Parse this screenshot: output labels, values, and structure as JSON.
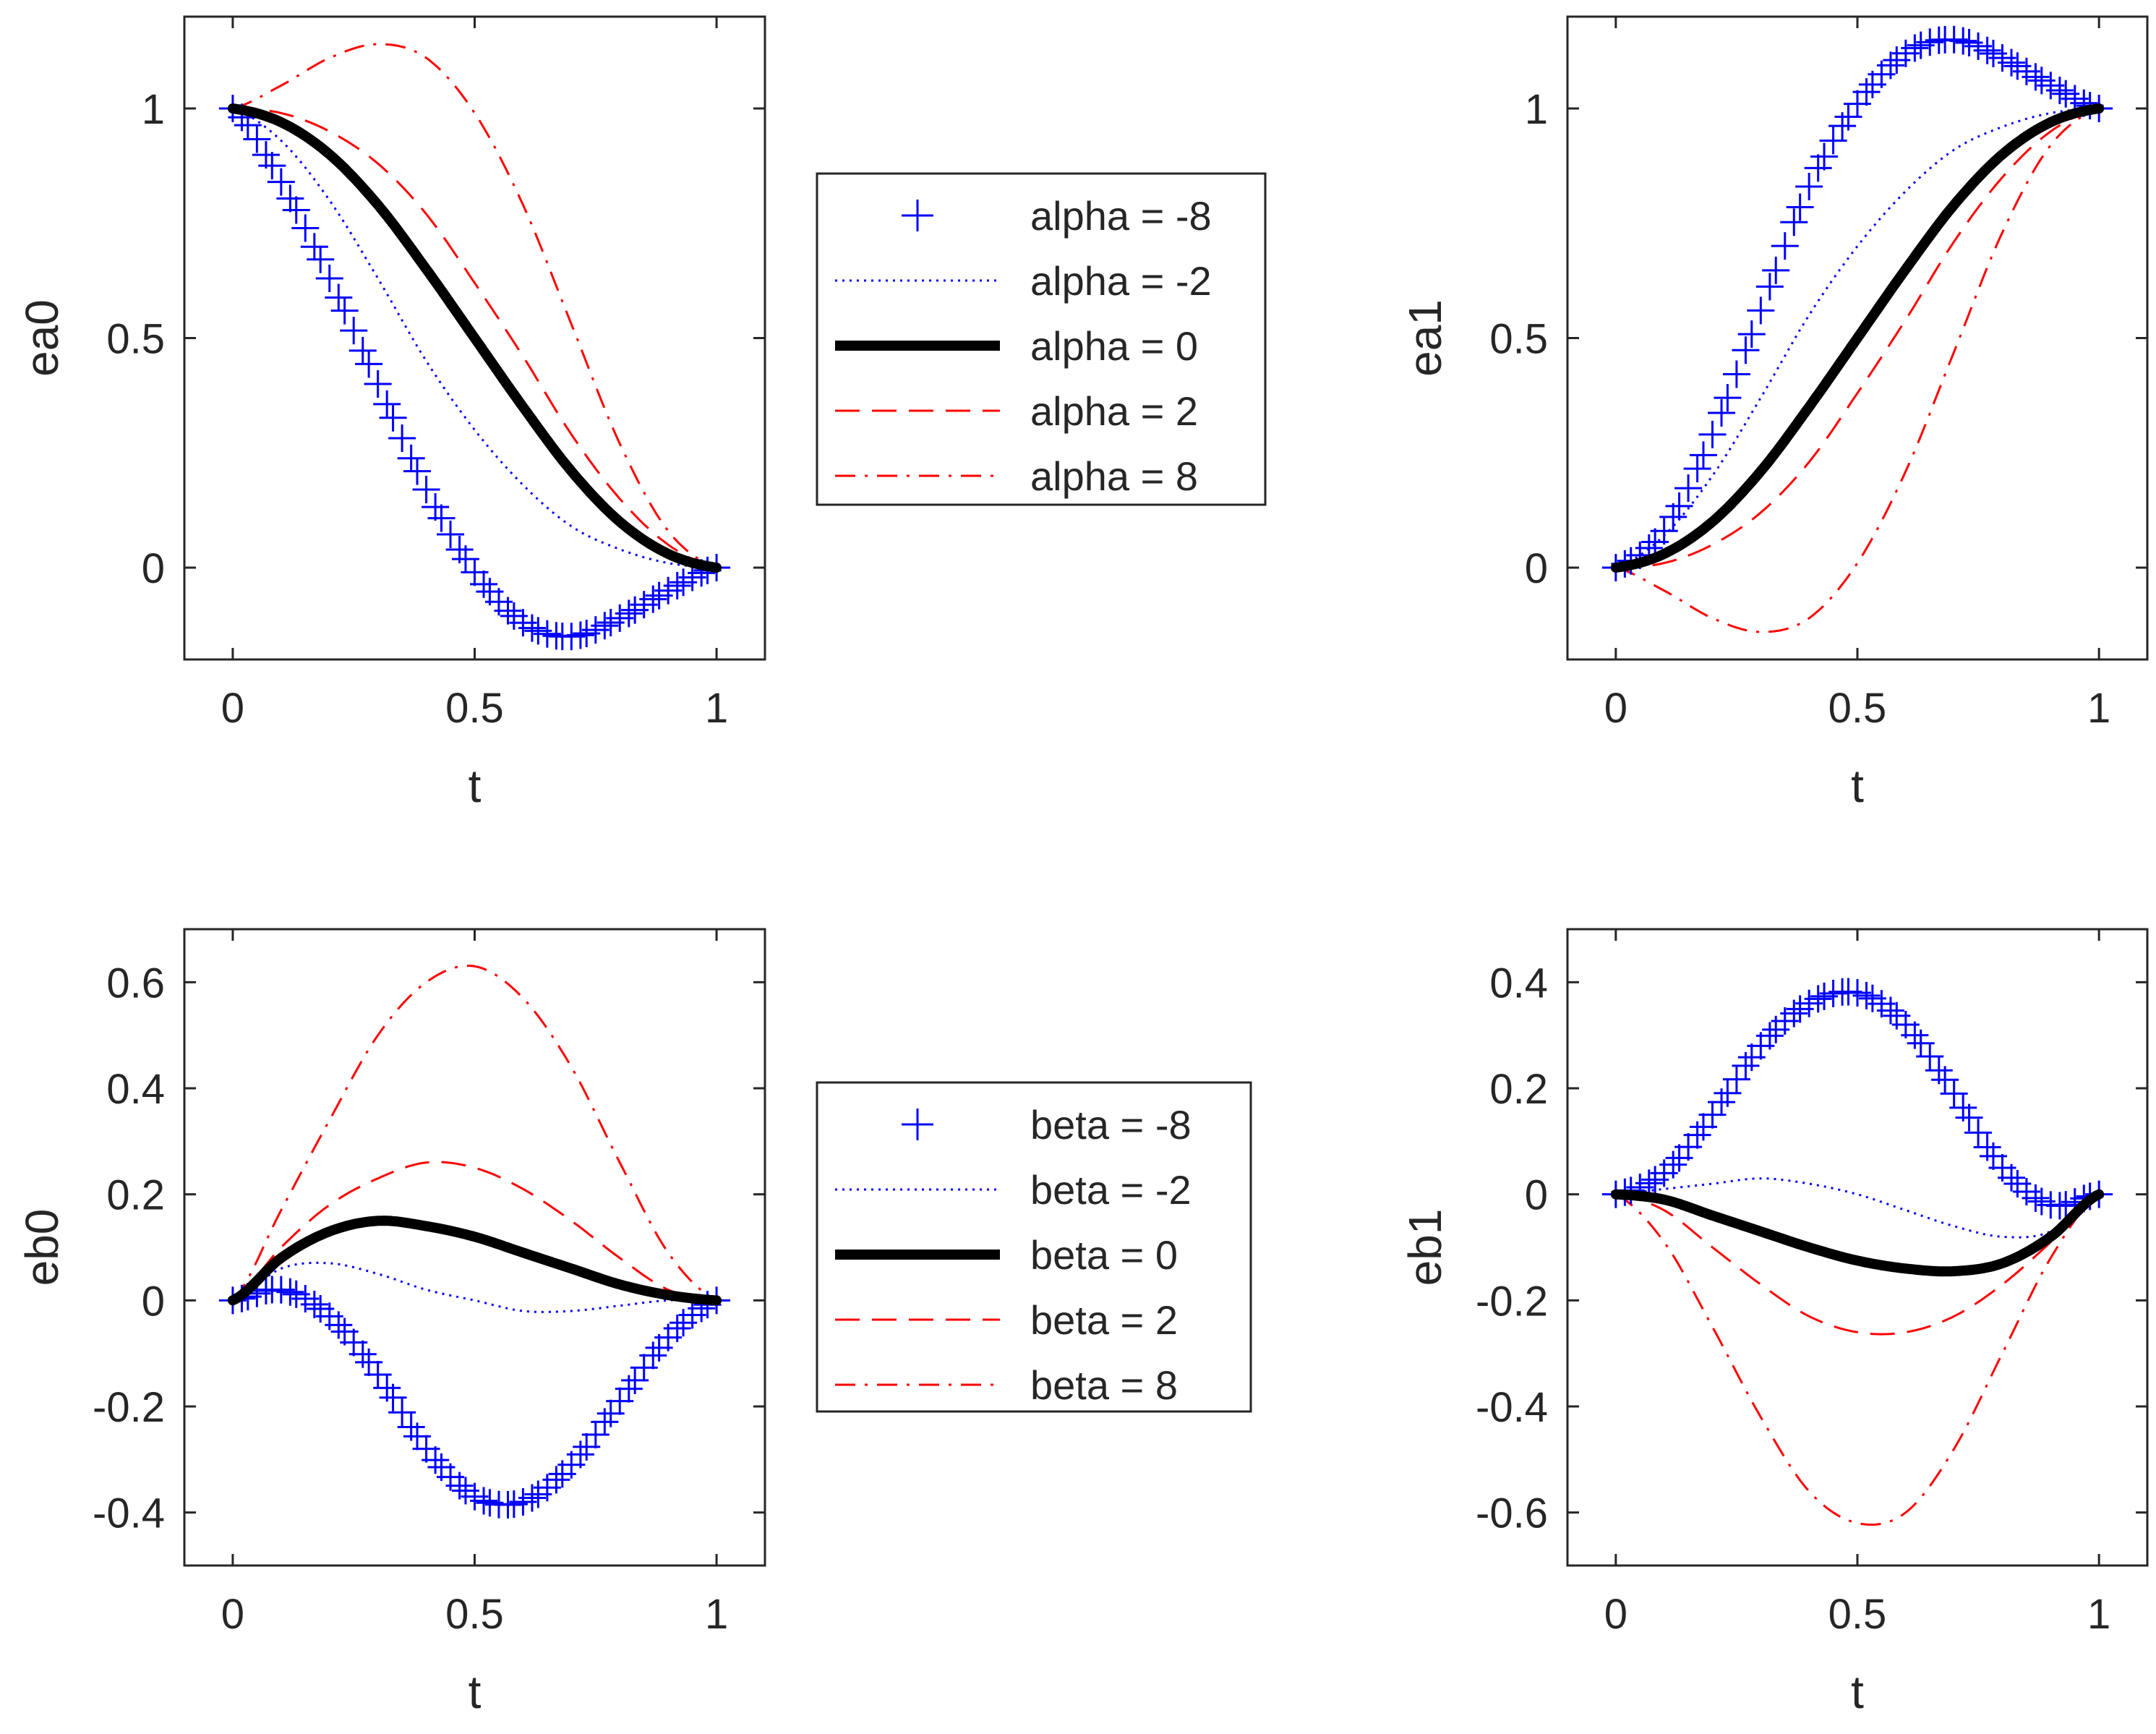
{
  "chart_data": [
    {
      "type": "line",
      "id": "ea0",
      "title": "",
      "xlabel": "t",
      "ylabel": "ea0",
      "xlim": [
        -0.1,
        1.1
      ],
      "ylim": [
        -0.2,
        1.2
      ],
      "xticks": [
        0,
        0.5,
        1
      ],
      "yticks": [
        0,
        0.5,
        1
      ],
      "xtick_labels": [
        "0",
        "0.5",
        "1"
      ],
      "ytick_labels": [
        "0",
        "0.5",
        "1"
      ],
      "grid": false,
      "x": [
        0,
        0.1,
        0.2,
        0.3,
        0.4,
        0.5,
        0.6,
        0.7,
        0.8,
        0.9,
        1.0
      ],
      "series": [
        {
          "name": "alpha = -8",
          "values": [
            1,
            0.84,
            0.63,
            0.4,
            0.17,
            -0.01,
            -0.12,
            -0.15,
            -0.11,
            -0.05,
            0
          ]
        },
        {
          "name": "alpha = -2",
          "values": [
            1,
            0.93,
            0.8,
            0.63,
            0.45,
            0.3,
            0.18,
            0.09,
            0.04,
            0.01,
            0
          ]
        },
        {
          "name": "alpha = 0",
          "values": [
            1,
            0.97,
            0.9,
            0.79,
            0.65,
            0.5,
            0.35,
            0.21,
            0.1,
            0.03,
            0
          ]
        },
        {
          "name": "alpha = 2",
          "values": [
            1,
            0.99,
            0.95,
            0.88,
            0.77,
            0.62,
            0.46,
            0.29,
            0.15,
            0.05,
            0
          ]
        },
        {
          "name": "alpha = 8",
          "values": [
            1,
            1.05,
            1.11,
            1.14,
            1.11,
            0.99,
            0.79,
            0.53,
            0.27,
            0.08,
            0
          ]
        }
      ],
      "legend": {
        "placement": "right",
        "entries": [
          "alpha = -8",
          "alpha = -2",
          "alpha = 0",
          "alpha = 2",
          "alpha = 8"
        ]
      }
    },
    {
      "type": "line",
      "id": "ea1",
      "title": "",
      "xlabel": "t",
      "ylabel": "ea1",
      "xlim": [
        -0.1,
        1.1
      ],
      "ylim": [
        -0.2,
        1.2
      ],
      "xticks": [
        0,
        0.5,
        1
      ],
      "yticks": [
        0,
        0.5,
        1
      ],
      "xtick_labels": [
        "0",
        "0.5",
        "1"
      ],
      "ytick_labels": [
        "0",
        "0.5",
        "1"
      ],
      "grid": false,
      "x": [
        0,
        0.1,
        0.2,
        0.3,
        0.4,
        0.5,
        0.6,
        0.7,
        0.8,
        0.9,
        1.0
      ],
      "series": [
        {
          "name": "alpha = -8",
          "values": [
            0,
            0.08,
            0.29,
            0.56,
            0.83,
            1.01,
            1.12,
            1.15,
            1.11,
            1.05,
            1
          ]
        },
        {
          "name": "alpha = -2",
          "values": [
            0,
            0.07,
            0.2,
            0.37,
            0.55,
            0.7,
            0.82,
            0.91,
            0.96,
            0.99,
            1
          ]
        },
        {
          "name": "alpha = 0",
          "values": [
            0,
            0.03,
            0.1,
            0.21,
            0.35,
            0.5,
            0.65,
            0.79,
            0.9,
            0.97,
            1
          ]
        },
        {
          "name": "alpha = 2",
          "values": [
            0,
            0.01,
            0.05,
            0.12,
            0.23,
            0.38,
            0.54,
            0.71,
            0.85,
            0.95,
            1
          ]
        },
        {
          "name": "alpha = 8",
          "values": [
            0,
            -0.05,
            -0.11,
            -0.14,
            -0.11,
            0.01,
            0.21,
            0.47,
            0.73,
            0.92,
            1
          ]
        }
      ]
    },
    {
      "type": "line",
      "id": "eb0",
      "title": "",
      "xlabel": "t",
      "ylabel": "eb0",
      "xlim": [
        -0.1,
        1.1
      ],
      "ylim": [
        -0.5,
        0.7
      ],
      "xticks": [
        0,
        0.5,
        1
      ],
      "yticks": [
        -0.4,
        -0.2,
        0,
        0.2,
        0.4,
        0.6
      ],
      "xtick_labels": [
        "0",
        "0.5",
        "1"
      ],
      "ytick_labels": [
        "-0.4",
        "-0.2",
        "0",
        "0.2",
        "0.4",
        "0.6"
      ],
      "grid": false,
      "x": [
        0,
        0.1,
        0.2,
        0.3,
        0.4,
        0.5,
        0.6,
        0.7,
        0.8,
        0.9,
        1.0
      ],
      "series": [
        {
          "name": "beta = -8",
          "values": [
            0,
            0.02,
            -0.03,
            -0.14,
            -0.28,
            -0.37,
            -0.38,
            -0.31,
            -0.19,
            -0.07,
            0
          ]
        },
        {
          "name": "beta = -2",
          "values": [
            0,
            0.06,
            0.07,
            0.05,
            0.02,
            0,
            -0.02,
            -0.02,
            -0.01,
            0,
            0
          ]
        },
        {
          "name": "beta = 0",
          "values": [
            0,
            0.08,
            0.13,
            0.15,
            0.14,
            0.12,
            0.09,
            0.06,
            0.03,
            0.01,
            0
          ]
        },
        {
          "name": "beta = 2",
          "values": [
            0,
            0.1,
            0.18,
            0.23,
            0.26,
            0.25,
            0.21,
            0.15,
            0.08,
            0.02,
            0
          ]
        },
        {
          "name": "beta = 8",
          "values": [
            0,
            0.17,
            0.34,
            0.5,
            0.6,
            0.63,
            0.57,
            0.44,
            0.26,
            0.09,
            0
          ]
        }
      ],
      "legend": {
        "placement": "right",
        "entries": [
          "beta = -8",
          "beta = -2",
          "beta = 0",
          "beta = 2",
          "beta = 8"
        ]
      }
    },
    {
      "type": "line",
      "id": "eb1",
      "title": "",
      "xlabel": "t",
      "ylabel": "eb1",
      "xlim": [
        -0.1,
        1.1
      ],
      "ylim": [
        -0.7,
        0.5
      ],
      "xticks": [
        0,
        0.5,
        1
      ],
      "yticks": [
        -0.6,
        -0.4,
        -0.2,
        0,
        0.2,
        0.4
      ],
      "xtick_labels": [
        "0",
        "0.5",
        "1"
      ],
      "ytick_labels": [
        "-0.6",
        "-0.4",
        "-0.2",
        "0",
        "0.2",
        "0.4"
      ],
      "grid": false,
      "x": [
        0,
        0.1,
        0.2,
        0.3,
        0.4,
        0.5,
        0.6,
        0.7,
        0.8,
        0.9,
        1.0
      ],
      "series": [
        {
          "name": "beta = -8",
          "values": [
            0,
            0.04,
            0.15,
            0.28,
            0.36,
            0.38,
            0.32,
            0.19,
            0.05,
            -0.02,
            0
          ]
        },
        {
          "name": "beta = -2",
          "values": [
            0,
            0.01,
            0.02,
            0.03,
            0.02,
            0,
            -0.03,
            -0.06,
            -0.08,
            -0.07,
            0
          ]
        },
        {
          "name": "beta = 0",
          "values": [
            0,
            -0.01,
            -0.04,
            -0.07,
            -0.1,
            -0.125,
            -0.14,
            -0.145,
            -0.13,
            -0.08,
            0
          ]
        },
        {
          "name": "beta = 2",
          "values": [
            0,
            -0.03,
            -0.1,
            -0.17,
            -0.23,
            -0.26,
            -0.26,
            -0.23,
            -0.17,
            -0.09,
            0
          ]
        },
        {
          "name": "beta = 8",
          "values": [
            0,
            -0.09,
            -0.25,
            -0.42,
            -0.56,
            -0.62,
            -0.6,
            -0.48,
            -0.3,
            -0.12,
            0
          ]
        }
      ]
    }
  ],
  "series_style": {
    "minus8": {
      "color": "#0000ff",
      "style": "plus-markers"
    },
    "minus2": {
      "color": "#0000ff",
      "style": "dotted"
    },
    "zero": {
      "color": "#000000",
      "style": "solid-thick"
    },
    "plus2": {
      "color": "#ff0000",
      "style": "dashed"
    },
    "plus8": {
      "color": "#ff0000",
      "style": "dash-dot"
    }
  }
}
